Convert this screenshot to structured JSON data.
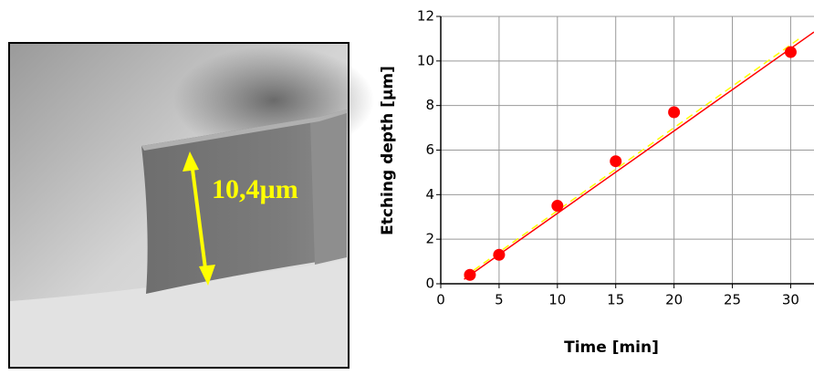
{
  "image_annotation": "10,4µm",
  "chart_data": {
    "type": "scatter",
    "x_label": "Time [min]",
    "y_label": "Etching depth [µm]",
    "xlim": [
      0,
      32
    ],
    "xticks": [
      0,
      5,
      10,
      15,
      20,
      25,
      30
    ],
    "ylim": [
      0,
      12
    ],
    "yticks": [
      0,
      2,
      4,
      6,
      8,
      10,
      12
    ],
    "grid": true,
    "series": [
      {
        "type": "line",
        "color": "#ff0000",
        "dashed": false,
        "x": [
          2,
          32
        ],
        "values": [
          0.2,
          11.3
        ]
      },
      {
        "type": "line",
        "color": "#ffff00",
        "dashed": true,
        "x": [
          2,
          31
        ],
        "values": [
          0.3,
          11.1
        ]
      },
      {
        "type": "scatter",
        "color": "#ff0000",
        "x": [
          2.5,
          5,
          10,
          15,
          20,
          30
        ],
        "values": [
          0.4,
          1.3,
          3.5,
          5.5,
          7.7,
          10.4
        ]
      }
    ]
  }
}
